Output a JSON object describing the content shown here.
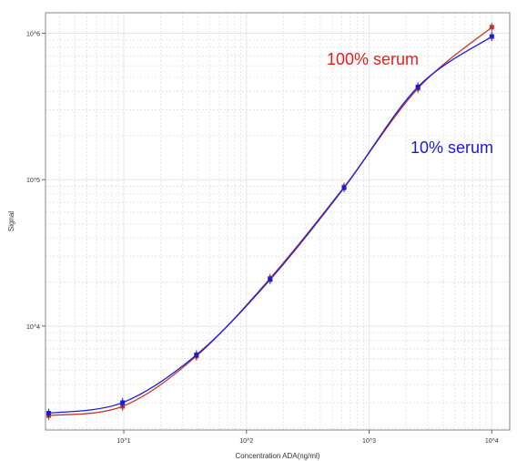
{
  "chart_data": {
    "type": "line",
    "xlabel": "Concentration ADA(ng/ml)",
    "ylabel": "Signal",
    "x_scale": "log",
    "y_scale": "log",
    "xlim": [
      2.3,
      14000
    ],
    "ylim": [
      1950,
      1380000
    ],
    "grid": true,
    "x_ticks": [
      {
        "value": 10,
        "label": "10^1"
      },
      {
        "value": 100,
        "label": "10^2"
      },
      {
        "value": 1000,
        "label": "10^3"
      },
      {
        "value": 10000,
        "label": "10^4"
      }
    ],
    "y_ticks": [
      {
        "value": 10000,
        "label": "10^4"
      },
      {
        "value": 100000,
        "label": "10^5"
      },
      {
        "value": 1000000,
        "label": "10^6"
      }
    ],
    "annotations": [
      {
        "text": "100% serum",
        "color": "#ee1c1c"
      },
      {
        "text": "10% serum",
        "color": "#1a1adf"
      }
    ],
    "series": [
      {
        "color": "#c0392b",
        "x": [
          2.44,
          9.77,
          39.1,
          156,
          625,
          2500,
          10000
        ],
        "y": [
          2450,
          2830,
          6240,
          21200,
          89000,
          420000,
          1100000
        ]
      },
      {
        "color": "#1a1adf",
        "x": [
          2.44,
          9.77,
          39.1,
          156,
          625,
          2500,
          10000
        ],
        "y": [
          2540,
          3000,
          6360,
          20800,
          88000,
          430000,
          950000
        ]
      }
    ]
  }
}
